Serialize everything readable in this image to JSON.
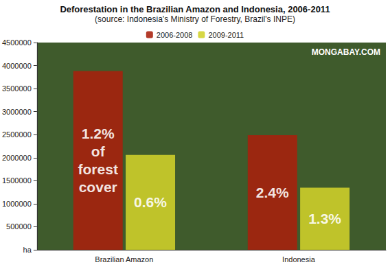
{
  "chart_data": {
    "type": "bar",
    "title": "Deforestation in the Brazilian Amazon and Indonesia, 2006-2011",
    "subtitle": "(source: Indonesia's Ministry of Forestry, Brazil's INPE)",
    "watermark": "MONGABAY.COM",
    "categories": [
      "Brazilian Amazon",
      "Indonesia"
    ],
    "series": [
      {
        "name": "2006-2008",
        "color": "#a8200c",
        "values": [
          3880000,
          2490000
        ],
        "annotations": [
          "1.2%\nof\nforest\ncover",
          "2.4%"
        ]
      },
      {
        "name": "2009-2011",
        "color": "#d2d22a",
        "values": [
          2060000,
          1350000
        ],
        "annotations": [
          "0.6%",
          "1.3%"
        ]
      }
    ],
    "ylim": [
      0,
      4500000
    ],
    "yticks": [
      {
        "value": 0,
        "label": "ha"
      },
      500000,
      1000000,
      1500000,
      2000000,
      2500000,
      3000000,
      3500000,
      4000000,
      4500000
    ],
    "grid": false,
    "legend": "top"
  }
}
